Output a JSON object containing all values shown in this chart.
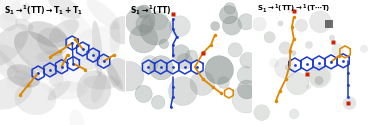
{
  "labels": [
    "S$_1$$\\rightarrow$$^1$(TT)$\\rightarrow$T$_1$+T$_1$",
    "S$_1$$\\rightarrow$$^1$(TT)",
    "S$_1$$\\rightarrow$$^1$(TT)$\\rightarrow$$^1$(T$\\cdots$T)"
  ],
  "panel_bg": [
    "#c8cac8",
    "#b8c0bc",
    "#c0c4c0"
  ],
  "blob_bg_1": "#a8aaa8",
  "circle_bg_2": "#a0a8a4",
  "circle_bg_3": "#b0b4b0",
  "blue": "#1a3acc",
  "orange": "#dd8800",
  "red": "#cc2200",
  "label_color": "#000000",
  "border_color": "#ffffff"
}
